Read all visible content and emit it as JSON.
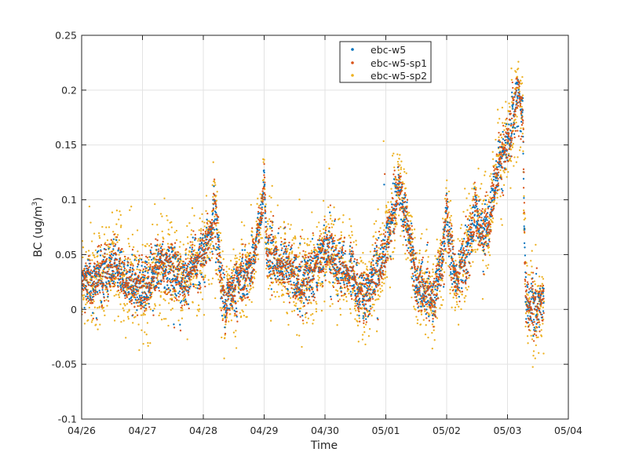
{
  "chart_data": {
    "type": "scatter",
    "title": "",
    "xlabel": "Time",
    "ylabel_main": "BC (ug/m",
    "ylabel_sup": "3",
    "ylabel_close": ")",
    "xlim": [
      "04/26",
      "05/04"
    ],
    "ylim": [
      -0.1,
      0.25
    ],
    "x_ticks": [
      "04/26",
      "04/27",
      "04/28",
      "04/29",
      "04/30",
      "05/01",
      "05/02",
      "05/03",
      "05/04"
    ],
    "y_ticks": [
      "-0.1",
      "-0.05",
      "0",
      "0.05",
      "0.1",
      "0.15",
      "0.2",
      "0.25"
    ],
    "y_tick_values": [
      -0.1,
      -0.05,
      0,
      0.05,
      0.1,
      0.15,
      0.2,
      0.25
    ],
    "grid": true,
    "legend_position": "top-center",
    "series": [
      {
        "name": "ebc-w5",
        "color": "#0072BD"
      },
      {
        "name": "ebc-w5-sp1",
        "color": "#D95319"
      },
      {
        "name": "ebc-w5-sp2",
        "color": "#EDB120"
      }
    ],
    "trend": {
      "x_unit": "days since 04/26 00:00",
      "x": [
        0.0,
        0.2,
        0.4,
        0.55,
        0.7,
        0.85,
        1.0,
        1.15,
        1.3,
        1.5,
        1.7,
        1.85,
        2.0,
        2.1,
        2.18,
        2.25,
        2.3,
        2.4,
        2.6,
        2.8,
        2.95,
        3.0,
        3.05,
        3.2,
        3.4,
        3.6,
        3.8,
        4.0,
        4.2,
        4.4,
        4.55,
        4.65,
        4.8,
        4.95,
        5.1,
        5.2,
        5.3,
        5.4,
        5.5,
        5.65,
        5.8,
        5.9,
        5.98,
        6.0,
        6.05,
        6.15,
        6.3,
        6.4,
        6.48,
        6.55,
        6.6,
        6.7,
        6.8,
        6.9,
        7.0,
        7.05,
        7.1,
        7.17,
        7.22,
        7.25,
        7.3,
        7.35,
        7.45,
        7.6
      ],
      "bc": [
        0.025,
        0.025,
        0.035,
        0.045,
        0.025,
        0.025,
        0.02,
        0.025,
        0.045,
        0.035,
        0.025,
        0.04,
        0.05,
        0.065,
        0.09,
        0.06,
        0.015,
        0.01,
        0.025,
        0.04,
        0.085,
        0.115,
        0.05,
        0.045,
        0.04,
        0.02,
        0.035,
        0.055,
        0.04,
        0.035,
        0.02,
        0.01,
        0.03,
        0.045,
        0.08,
        0.115,
        0.085,
        0.06,
        0.025,
        0.015,
        0.01,
        0.04,
        0.075,
        0.095,
        0.055,
        0.035,
        0.04,
        0.06,
        0.095,
        0.065,
        0.06,
        0.085,
        0.11,
        0.135,
        0.15,
        0.16,
        0.185,
        0.2,
        0.18,
        0.175,
        0.005,
        0.0,
        0.005,
        0.01
      ],
      "start": 0.0,
      "end": 7.6
    }
  }
}
